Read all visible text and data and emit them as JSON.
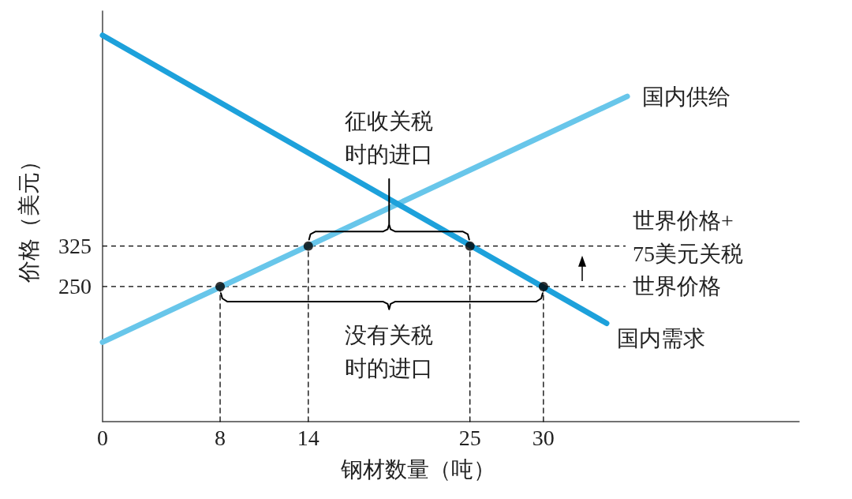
{
  "chart_data": {
    "type": "line",
    "xlabel": "钢材数量（吨）",
    "ylabel": "价格（美元）",
    "xlim": [
      0,
      47.4
    ],
    "ylim": [
      0,
      760
    ],
    "xticks": [
      0,
      8,
      14,
      25,
      30
    ],
    "yticks": [
      250,
      325
    ],
    "series": [
      {
        "color": "#000000",
        "x": [
          8,
          8
        ],
        "values": [
          0,
          250
        ],
        "line_style": "dashed",
        "marker": "none"
      },
      {
        "color": "#000000",
        "x": [
          14,
          14
        ],
        "values": [
          0,
          325
        ],
        "line_style": "dashed",
        "marker": "none"
      },
      {
        "color": "#000000",
        "x": [
          25,
          25
        ],
        "values": [
          0,
          325
        ],
        "line_style": "dashed",
        "marker": "none"
      },
      {
        "color": "#000000",
        "x": [
          30,
          30
        ],
        "values": [
          0,
          250
        ],
        "line_style": "dashed",
        "marker": "none"
      },
      {
        "name": "国内供给",
        "color": "#68c6ea",
        "x": [
          0,
          35.7
        ],
        "values": [
          147,
          602
        ],
        "line_style": "solid",
        "marker": "none"
      },
      {
        "name": "国内需求",
        "color": "#1da1db",
        "x": [
          0,
          34.3
        ],
        "values": [
          715,
          182
        ],
        "line_style": "solid",
        "marker": "none"
      },
      {
        "color": "#000000",
        "x": [
          14.05,
          14.15,
          14.5,
          19.1,
          19.4,
          19.5,
          19.5,
          19.5,
          19.6,
          19.9,
          24.5,
          24.85,
          24.95
        ],
        "values": [
          337,
          347,
          352,
          352,
          356,
          365,
          449,
          365,
          356,
          352,
          352,
          347,
          337
        ],
        "line_style": "solid",
        "marker": "none"
      },
      {
        "color": "#000000",
        "x": [
          8.05,
          8.15,
          8.5,
          19.1,
          19.4,
          19.5,
          19.6,
          19.9,
          29.5,
          29.85,
          29.95
        ],
        "values": [
          238,
          228,
          222,
          222,
          218,
          208,
          218,
          222,
          222,
          228,
          238
        ],
        "line_style": "solid",
        "marker": "none"
      },
      {
        "type": "scatter",
        "color": "#000000",
        "x": [
          8,
          14,
          25,
          30
        ],
        "values": [
          250,
          325,
          325,
          250
        ],
        "marker": "circle"
      }
    ],
    "ref_lines": [
      {
        "axis": "y",
        "value": 325,
        "label": "世界价格+75美元关税",
        "color": "#000000",
        "line_style": "dashed"
      },
      {
        "axis": "y",
        "value": 250,
        "label": "世界价格",
        "color": "#000000",
        "line_style": "dashed"
      }
    ],
    "annotations": [
      {
        "text": "征收关税时的进口",
        "x": 19.5,
        "y": 449
      },
      {
        "text": "没有关税时的进口",
        "x": 19.5,
        "y": 208
      }
    ]
  }
}
